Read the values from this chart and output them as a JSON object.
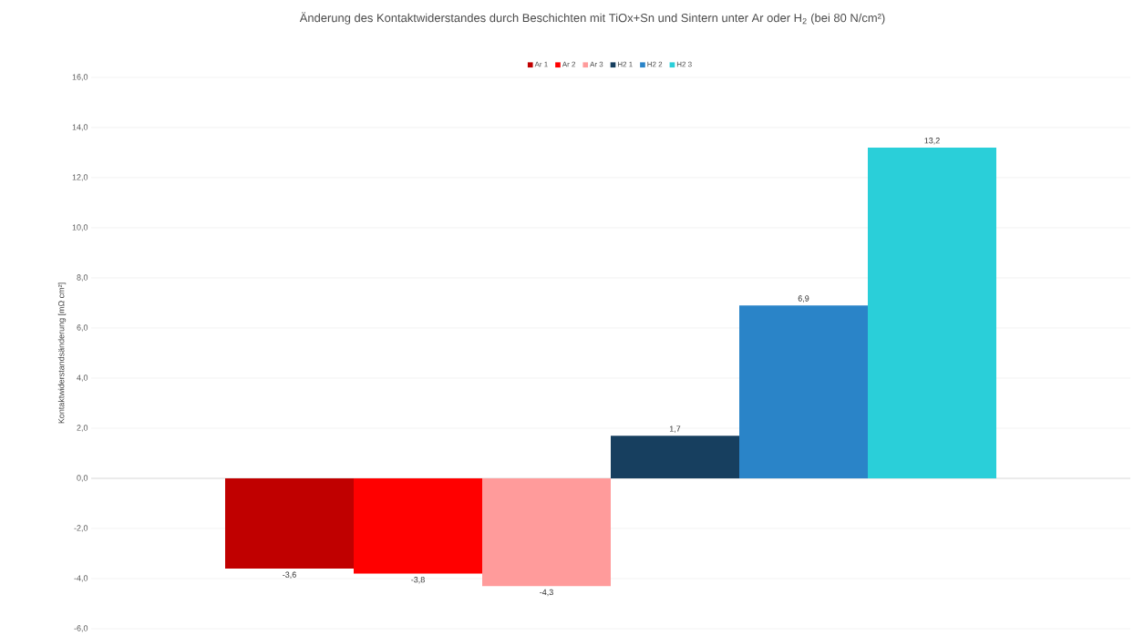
{
  "chart_data": {
    "type": "bar",
    "title": "Änderung des Kontaktwiderstandes durch Beschichten mit TiOx+Sn und Sintern unter Ar oder H$_{2}$ (bei 80 N/cm²)",
    "ylabel": "Kontaktwiderstandsänderung [mΩ cm²]",
    "categories": [
      null
    ],
    "series": [
      {
        "name": "Ar 1",
        "color": "#c00000",
        "values": [
          -3.6
        ],
        "value_labels": [
          "-3,6"
        ]
      },
      {
        "name": "Ar 2",
        "color": "#ff0000",
        "values": [
          -3.8
        ],
        "value_labels": [
          "-3,8"
        ]
      },
      {
        "name": "Ar 3",
        "color": "#ff9b9b",
        "values": [
          -4.3
        ],
        "value_labels": [
          "-4,3"
        ]
      },
      {
        "name": "H2 1",
        "color": "#173f5f",
        "values": [
          1.7
        ],
        "value_labels": [
          "1,7"
        ]
      },
      {
        "name": "H2 2",
        "color": "#2a84c8",
        "values": [
          6.9
        ],
        "value_labels": [
          "6,9"
        ]
      },
      {
        "name": "H2 3",
        "color": "#2acfd9",
        "values": [
          13.2
        ],
        "value_labels": [
          "13,2"
        ]
      }
    ],
    "ylim": [
      -6,
      16
    ],
    "yticks": [
      {
        "value": -6,
        "label": "-6,0"
      },
      {
        "value": -4,
        "label": "-4,0"
      },
      {
        "value": -2,
        "label": "-2,0"
      },
      {
        "value": 0,
        "label": "0,0"
      },
      {
        "value": 2,
        "label": "2,0"
      },
      {
        "value": 4,
        "label": "4,0"
      },
      {
        "value": 6,
        "label": "6,0"
      },
      {
        "value": 8,
        "label": "8,0"
      },
      {
        "value": 10,
        "label": "10,0"
      },
      {
        "value": 12,
        "label": "12,0"
      },
      {
        "value": 14,
        "label": "14,0"
      },
      {
        "value": 16,
        "label": "16,0"
      }
    ],
    "grid": "y",
    "legend": "top"
  }
}
